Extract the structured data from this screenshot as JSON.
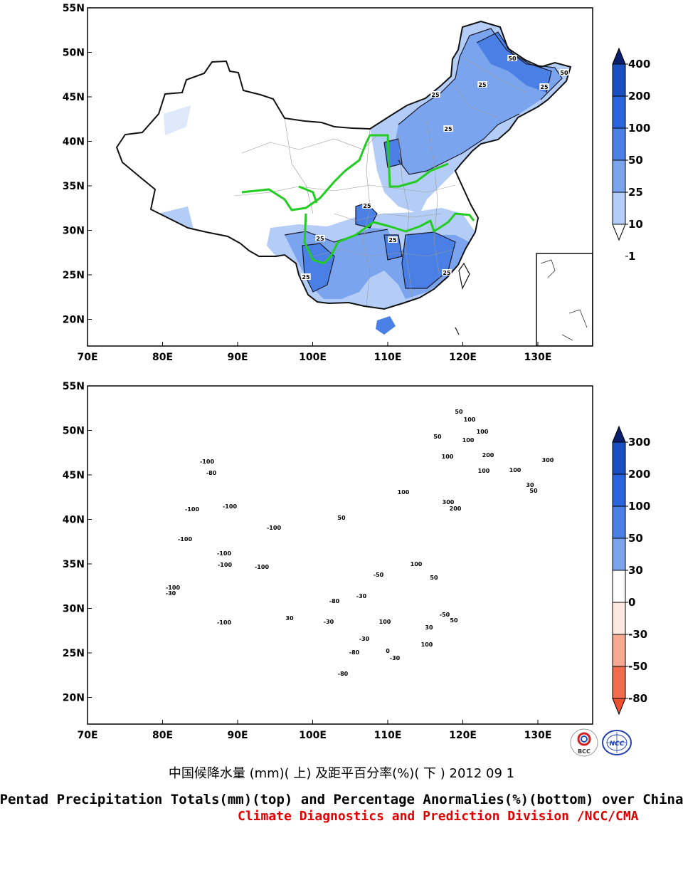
{
  "panels": [
    {
      "id": "top",
      "ylabels": [
        "55N",
        "50N",
        "45N",
        "40N",
        "35N",
        "30N",
        "25N",
        "20N"
      ],
      "xlabels": [
        "70E",
        "80E",
        "90E",
        "100E",
        "110E",
        "120E",
        "130E"
      ],
      "colorbar": {
        "labels": [
          "400",
          "200",
          "100",
          "50",
          "25",
          "10",
          "1"
        ],
        "colors": [
          "#0a1f6e",
          "#1a4fc0",
          "#2a64dc",
          "#4a80e6",
          "#7aa4ee",
          "#b4cdf6",
          "#ffffff"
        ]
      },
      "contour_labels": [
        "50",
        "50",
        "25",
        "25",
        "25",
        "25",
        "25",
        "25",
        "25",
        "25",
        "25"
      ]
    },
    {
      "id": "bottom",
      "ylabels": [
        "55N",
        "50N",
        "45N",
        "40N",
        "35N",
        "30N",
        "25N",
        "20N"
      ],
      "xlabels": [
        "70E",
        "80E",
        "90E",
        "100E",
        "110E",
        "120E",
        "130E"
      ],
      "colorbar": {
        "labels": [
          "300",
          "200",
          "100",
          "50",
          "30",
          "0",
          "-30",
          "-50",
          "-80"
        ],
        "colors": [
          "#0a1f6e",
          "#1a4fc0",
          "#2a64dc",
          "#4a80e6",
          "#7aa4ee",
          "#ffffff",
          "#fde8e0",
          "#f7a890",
          "#f06c4c",
          "#ec5030"
        ]
      },
      "contour_labels": [
        "-100",
        "-80",
        "-100",
        "-100",
        "-100",
        "-100",
        "-100",
        "-100",
        "-100",
        "-100",
        "-100",
        "-30",
        "-30",
        "-80",
        "-80",
        "-50",
        "-30",
        "-30",
        "-80",
        "-30",
        "-50",
        "0",
        "50",
        "100",
        "100",
        "100",
        "100",
        "100",
        "100",
        "50",
        "50",
        "200",
        "300",
        "200",
        "100",
        "100",
        "50",
        "30",
        "100",
        "50",
        "100",
        "50",
        "30",
        "300",
        "30"
      ]
    }
  ],
  "logos": {
    "left": "BCC",
    "right": "NCC"
  },
  "title_cn": "中国候降水量 (mm)( 上) 及距平百分率(%)( 下 ) 2012 09 1",
  "title_en": "Pentad Precipitation Totals(mm)(top) and Percentage Anormalies(%)(bottom) over China",
  "credit": "Climate Diagnostics and Prediction Division /NCC/CMA"
}
